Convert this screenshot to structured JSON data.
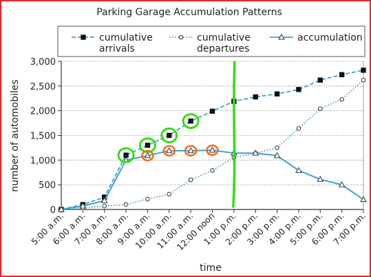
{
  "chart_data": {
    "type": "line",
    "title": "Parking Garage Accumulation Patterns",
    "xlabel": "time",
    "ylabel": "number of automobiles",
    "ylim": [
      0,
      3000
    ],
    "yticks": [
      0,
      500,
      1000,
      1500,
      2000,
      2500,
      3000
    ],
    "ytick_labels": [
      "0",
      "500",
      "1,000",
      "1,500",
      "2,000",
      "2,500",
      "3,000"
    ],
    "categories": [
      "5:00 a.m.",
      "6:00 a.m.",
      "7:00 a.m.",
      "8:00 a.m.",
      "9:00 a.m.",
      "10:00 a.m.",
      "11:00 a.m.",
      "12:00 noon",
      "1:00 p.m.",
      "2:00 p.m.",
      "3:00 p.m.",
      "4:00 p.m.",
      "5:00 p.m.",
      "6:00 p.m.",
      "7:00 p.m."
    ],
    "grid": true,
    "legend": "top",
    "series": [
      {
        "name": "cumulative arrivals",
        "line_label": [
          "cumulative",
          "arrivals"
        ],
        "style": "dashed",
        "marker": "square",
        "color": "#3ba3cf",
        "values": [
          0,
          100,
          250,
          1100,
          1300,
          1500,
          1790,
          1990,
          2190,
          2280,
          2340,
          2430,
          2620,
          2730,
          2820
        ]
      },
      {
        "name": "cumulative departures",
        "line_label": [
          "cumulative",
          "departures"
        ],
        "style": "dotted",
        "marker": "circle",
        "color": "#3ba3cf",
        "values": [
          0,
          30,
          70,
          100,
          210,
          310,
          600,
          790,
          1050,
          1140,
          1250,
          1640,
          2040,
          2230,
          2620
        ]
      },
      {
        "name": "accumulation",
        "line_label": [
          "accumulation"
        ],
        "style": "solid",
        "marker": "triangle",
        "color": "#3ba3cf",
        "values": [
          0,
          70,
          180,
          1000,
          1090,
          1190,
          1190,
          1200,
          1140,
          1140,
          1090,
          790,
          610,
          500,
          200
        ]
      }
    ],
    "annotations": {
      "green_circles_on": "cumulative arrivals",
      "green_circle_categories": [
        "8:00 a.m.",
        "9:00 a.m.",
        "10:00 a.m.",
        "11:00 a.m."
      ],
      "orange_circles_on": "accumulation",
      "orange_circle_categories": [
        "9:00 a.m.",
        "10:00 a.m.",
        "11:00 a.m.",
        "12:00 noon"
      ],
      "vertical_marker_category": "1:00 p.m.",
      "green_color": "#33dd11",
      "orange_color": "#f26a1b"
    }
  }
}
